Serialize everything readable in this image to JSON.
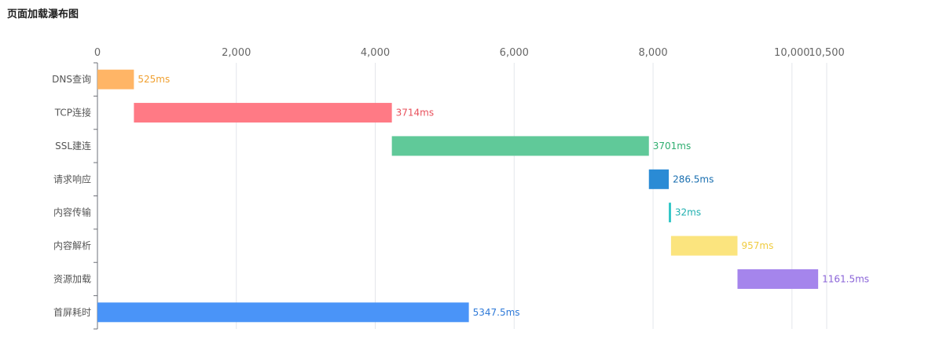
{
  "chart_data": {
    "type": "bar",
    "orientation": "horizontal",
    "title": "页面加载瀑布图",
    "xlabel": "",
    "ylabel": "",
    "xlim": [
      0,
      10500
    ],
    "x_ticks": [
      0,
      2000,
      4000,
      6000,
      8000,
      10000,
      10500
    ],
    "x_tick_labels": [
      "0",
      "2,000",
      "4,000",
      "6,000",
      "8,000",
      "10,000",
      "10,500"
    ],
    "grid": true,
    "legend": "none",
    "categories": [
      "DNS查询",
      "TCP连接",
      "SSL建连",
      "请求响应",
      "内容传输",
      "内容解析",
      "资源加载",
      "首屏耗时"
    ],
    "bars": [
      {
        "category": "DNS查询",
        "start": 0,
        "duration": 525,
        "label": "525ms",
        "color": "#ffb566",
        "label_color": "#f0a030"
      },
      {
        "category": "TCP连接",
        "start": 525,
        "duration": 3714,
        "label": "3714ms",
        "color": "#ff7a85",
        "label_color": "#e8505b"
      },
      {
        "category": "SSL建连",
        "start": 4239,
        "duration": 3701,
        "label": "3701ms",
        "color": "#60c999",
        "label_color": "#2fae70"
      },
      {
        "category": "请求响应",
        "start": 7940,
        "duration": 286.5,
        "label": "286.5ms",
        "color": "#2a8bd5",
        "label_color": "#1a6fb0"
      },
      {
        "category": "内容传输",
        "start": 8226.5,
        "duration": 32,
        "label": "32ms",
        "color": "#2cc5c5",
        "label_color": "#20b0b0"
      },
      {
        "category": "内容解析",
        "start": 8258.5,
        "duration": 957,
        "label": "957ms",
        "color": "#fbe47e",
        "label_color": "#f0cc40"
      },
      {
        "category": "资源加载",
        "start": 9215.5,
        "duration": 1161.5,
        "label": "1161.5ms",
        "color": "#a585ec",
        "label_color": "#8a63d8"
      },
      {
        "category": "首屏耗时",
        "start": 0,
        "duration": 5347.5,
        "label": "5347.5ms",
        "color": "#4a94f8",
        "label_color": "#2f7ad8"
      }
    ]
  }
}
